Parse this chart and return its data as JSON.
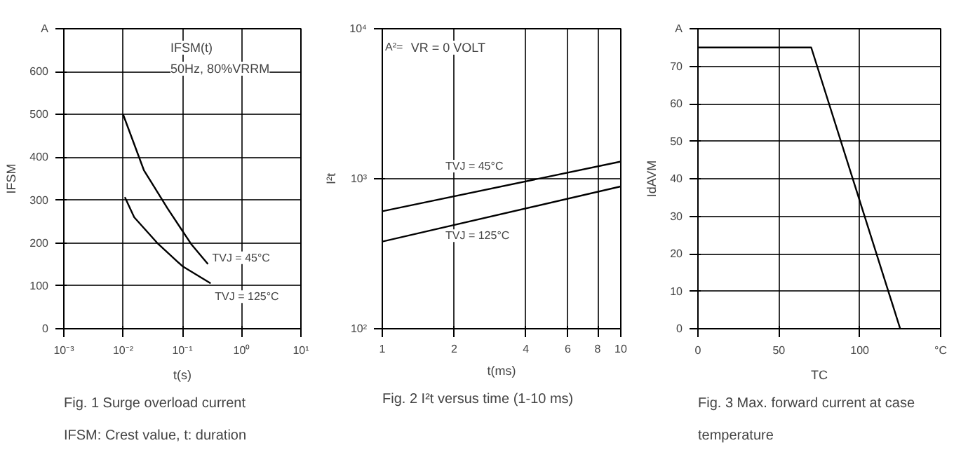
{
  "chart_data": [
    {
      "type": "line",
      "xlabel": "t(s)",
      "ylabel": "IFSM",
      "log": "x",
      "xlim": [
        0.001,
        10
      ],
      "ylim": [
        0,
        700
      ],
      "xticks": [
        {
          "value": 0.001,
          "label": "10⁻³"
        },
        {
          "value": 0.01,
          "label": "10⁻²"
        },
        {
          "value": 0.1,
          "label": "10⁻¹"
        },
        {
          "value": 1,
          "label": "10⁰"
        },
        {
          "value": 10,
          "label": "10¹"
        }
      ],
      "yticks": [
        0,
        100,
        200,
        300,
        400,
        500,
        600,
        {
          "value": 700,
          "label": "A"
        }
      ],
      "grid": true,
      "series": [
        {
          "name": "TVJ = 45°C",
          "color": "#000000",
          "x": [
            0.01,
            0.0224,
            0.056,
            0.14,
            0.27
          ],
          "values": [
            500,
            370,
            281,
            198,
            151
          ]
        },
        {
          "name": "TVJ = 125°C",
          "color": "#000000",
          "x": [
            0.0107,
            0.0154,
            0.039,
            0.1,
            0.3
          ],
          "values": [
            307,
            260,
            198,
            146,
            106
          ]
        }
      ],
      "annotations": [
        "IFSM(t)",
        "50Hz, 80%VRRM",
        "Fig. 1  Surge overload current",
        "IFSM: Crest value, t: duration"
      ]
    },
    {
      "type": "line",
      "xlabel": "t(ms)",
      "ylabel": "I²t",
      "log": "xy",
      "xlim": [
        1,
        10
      ],
      "ylim": [
        100,
        10000
      ],
      "xticks": [
        1,
        2,
        4,
        6,
        8,
        10
      ],
      "yticks": [
        {
          "value": 100,
          "label": "10²"
        },
        {
          "value": 1000,
          "label": "10³"
        },
        {
          "value": 10000,
          "label": "10⁴"
        }
      ],
      "grid": true,
      "series": [
        {
          "name": "TVJ = 45°C",
          "color": "#000000",
          "x": [
            1,
            10
          ],
          "values": [
            607,
            1302
          ]
        },
        {
          "name": "TVJ = 125°C",
          "color": "#000000",
          "x": [
            1,
            10
          ],
          "values": [
            381,
            889
          ]
        }
      ],
      "annotations": [
        "A²=",
        "VR = 0 VOLT",
        "Fig. 2  I²t versus time (1-10 ms)"
      ]
    },
    {
      "type": "line",
      "xlabel": "TC",
      "ylabel": "IdAVM",
      "xlim": [
        0,
        150
      ],
      "ylim": [
        0,
        80
      ],
      "xticks": [
        0,
        50,
        100,
        {
          "value": 150,
          "label": "°C"
        }
      ],
      "yticks": [
        0,
        10,
        20,
        30,
        40,
        50,
        60,
        70,
        {
          "value": 80,
          "label": "A"
        }
      ],
      "grid": true,
      "x": [
        0,
        70,
        125
      ],
      "values": [
        75,
        75,
        0
      ],
      "color": "#000000",
      "annotations": [
        "Fig. 3  Max. forward current at case",
        "temperature"
      ]
    }
  ]
}
